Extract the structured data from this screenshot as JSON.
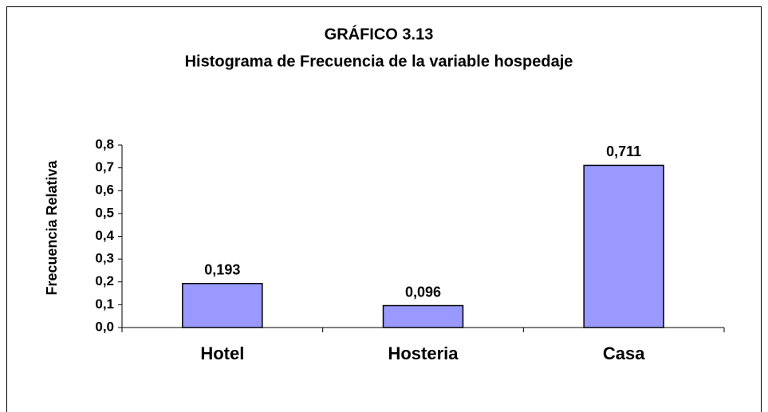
{
  "chart_data": {
    "type": "bar",
    "title": "GRÁFICO 3.13",
    "subtitle": "Histograma de Frecuencia de la variable hospedaje",
    "ylabel": "Frecuencia Relativa",
    "categories": [
      "Hotel",
      "Hosteria",
      "Casa"
    ],
    "values": [
      0.193,
      0.096,
      0.711
    ],
    "value_labels": [
      "0,193",
      "0,096",
      "0,711"
    ],
    "color": "#9999ff",
    "ylim": [
      0,
      0.8
    ],
    "yticks": [
      {
        "value": 0,
        "label": "0,0"
      },
      {
        "value": 0.1,
        "label": "0,1"
      },
      {
        "value": 0.2,
        "label": "0,2"
      },
      {
        "value": 0.3,
        "label": "0,3"
      },
      {
        "value": 0.4,
        "label": "0,4"
      },
      {
        "value": 0.5,
        "label": "0,5"
      },
      {
        "value": 0.6,
        "label": "0,6"
      },
      {
        "value": 0.7,
        "label": "0,7"
      },
      {
        "value": 0.8,
        "label": "0,8"
      }
    ],
    "grid": false
  }
}
